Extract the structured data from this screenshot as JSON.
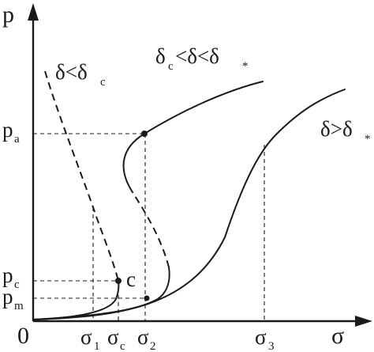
{
  "axes": {
    "y_label": "p",
    "x_label": "σ",
    "origin": "0"
  },
  "y_ticks": [
    {
      "main": "p",
      "sub": "a"
    },
    {
      "main": "p",
      "sub": "c"
    },
    {
      "main": "p",
      "sub": "m"
    }
  ],
  "x_ticks": [
    {
      "main": "σ",
      "sub": "1"
    },
    {
      "main": "σ",
      "sub": "c"
    },
    {
      "main": "σ",
      "sub": "2"
    },
    {
      "main": "σ",
      "sub": "3"
    }
  ],
  "critical_point": "c",
  "curve_labels": {
    "lt": {
      "a": "δ<δ",
      "a_sub": "c"
    },
    "mid": {
      "a": "δ",
      "a_sub": "c",
      "b": "<δ<δ",
      "b_sub": "*"
    },
    "gt": {
      "a": "δ>δ",
      "a_sub": "*"
    }
  }
}
